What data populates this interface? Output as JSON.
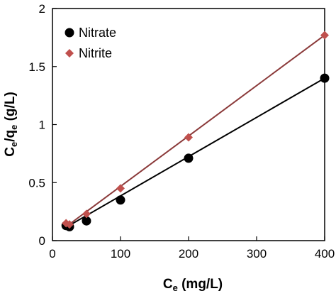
{
  "chart_data": {
    "type": "scatter",
    "xlabel": {
      "main": "C",
      "sub": "e",
      "rest": " (mg/L)"
    },
    "ylabel": {
      "c": "C",
      "e1": "e",
      "mid": "/q",
      "e2": "e",
      "rest": " (g/L)"
    },
    "xlim": [
      0,
      400
    ],
    "ylim": [
      0,
      2
    ],
    "x_ticks": [
      0,
      100,
      200,
      300,
      400
    ],
    "x_tick_labels": [
      "0",
      "100",
      "200",
      "300",
      "400"
    ],
    "y_ticks": [
      0,
      0.5,
      1,
      1.5,
      2
    ],
    "y_tick_labels": [
      "0",
      "0.5",
      "1",
      "1.5",
      "2"
    ],
    "grid": false,
    "legend_position": "top-left",
    "series": [
      {
        "name": "Nitrate",
        "marker": "circle",
        "color": "#000000",
        "line_color": "#000000",
        "x": [
          20,
          25,
          50,
          100,
          200,
          400
        ],
        "y": [
          0.13,
          0.12,
          0.17,
          0.35,
          0.71,
          1.4
        ],
        "fit": {
          "x": [
            20,
            400
          ],
          "y": [
            0.115,
            1.4
          ]
        }
      },
      {
        "name": "Nitrite",
        "marker": "diamond",
        "color": "#c0504d",
        "line_color": "#8b3a3a",
        "x": [
          20,
          25,
          50,
          100,
          200,
          400
        ],
        "y": [
          0.15,
          0.14,
          0.23,
          0.45,
          0.89,
          1.77
        ],
        "fit": {
          "x": [
            20,
            400
          ],
          "y": [
            0.12,
            1.77
          ]
        }
      }
    ]
  }
}
